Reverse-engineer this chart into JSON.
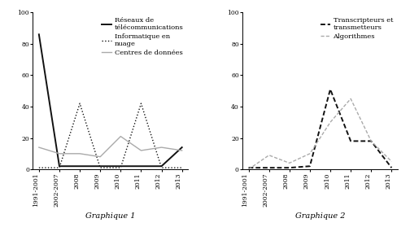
{
  "categories": [
    "1991-2001",
    "2002-2007",
    "2008",
    "2009",
    "2010",
    "2011",
    "2012",
    "2013"
  ],
  "chart1": {
    "reseaux": [
      86,
      2,
      2,
      2,
      2,
      2,
      2,
      14
    ],
    "informatique": [
      1,
      1,
      42,
      1,
      1,
      42,
      1,
      1
    ],
    "centres": [
      14,
      10,
      10,
      8,
      21,
      12,
      14,
      12
    ],
    "ylim": [
      0,
      100
    ],
    "yticks": [
      0,
      20,
      40,
      60,
      80,
      100
    ],
    "legend_labels": [
      "Réseaux de\ntélécommunications",
      "Informatique en\nnuage",
      "Centres de données"
    ],
    "subtitle": "Graphique 1"
  },
  "chart2": {
    "transcripteurs": [
      1,
      1,
      1,
      2,
      51,
      18,
      18,
      1
    ],
    "algorithmes": [
      0,
      9,
      4,
      10,
      30,
      45,
      18,
      5
    ],
    "ylim": [
      0,
      100
    ],
    "yticks": [
      0,
      20,
      40,
      60,
      80,
      100
    ],
    "legend_labels": [
      "Transcripteurs et\ntransmetteurs",
      "Algorithmes"
    ],
    "subtitle": "Graphique 2"
  },
  "bg_color": "#ffffff",
  "line_color_black": "#111111",
  "line_color_gray": "#aaaaaa",
  "font_family": "DejaVu Serif",
  "fontsize_tick": 5.5,
  "fontsize_legend": 6.0,
  "fontsize_subtitle": 7.0
}
